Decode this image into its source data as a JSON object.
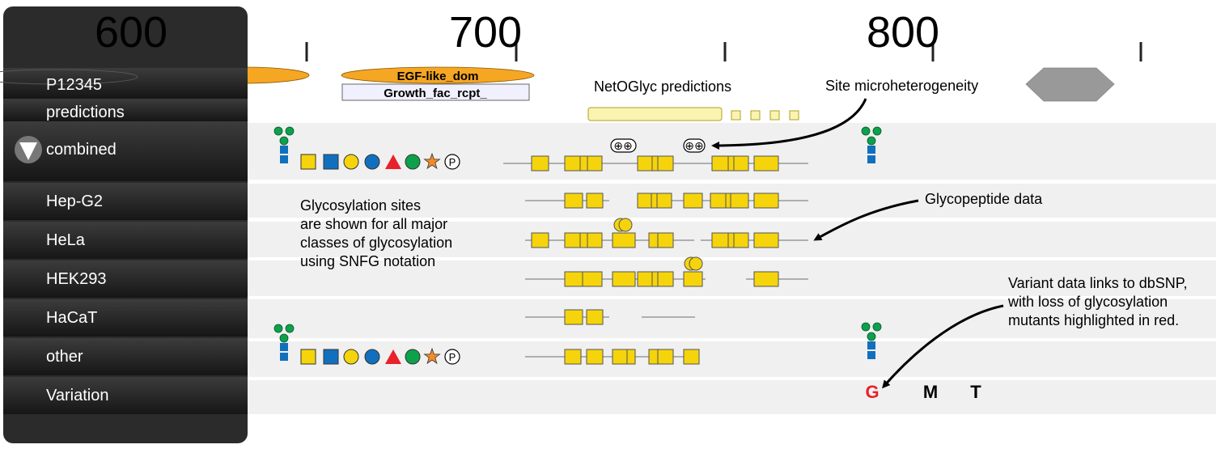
{
  "ruler": {
    "ticks": [
      "600",
      "700",
      "800"
    ]
  },
  "tracks": {
    "protein": "P12345",
    "predictions": "predictions",
    "combined": "combined",
    "rows": [
      "Hep-G2",
      "HeLa",
      "HEK293",
      "HaCaT",
      "other",
      "Variation"
    ]
  },
  "domains": {
    "egf": "EGF-like_dom",
    "growth": "Growth_fac_rcpt_"
  },
  "netoglyc_label": "NetOGlyc predictions",
  "phospho_symbol": "P",
  "annotations": {
    "microheterogeneity": "Site microheterogeneity",
    "glycopeptide": "Glycopeptide data",
    "glycosylation_sites": [
      "Glycosylation sites",
      "are shown for all major",
      "classes of glycosylation",
      "using SNFG notation"
    ],
    "variant_note": [
      "Variant data links to dbSNP,",
      "with loss of glycosylation",
      "mutants highlighted in red."
    ]
  },
  "variants": [
    {
      "letter": "G",
      "color": "#e8212a"
    },
    {
      "letter": "M",
      "color": "#000000"
    },
    {
      "letter": "T",
      "color": "#000000"
    }
  ],
  "colors": {
    "snfg_yellow": "#f5d40c",
    "snfg_blue": "#1170bd",
    "snfg_green": "#0da14b",
    "snfg_red": "#e8212a",
    "snfg_orange": "#f28c28",
    "domain_orange": "#f5a623",
    "panel_dark": "#2b2b2b",
    "track_bg": "#f0f0f0",
    "variant_loss": "#e8212a"
  }
}
